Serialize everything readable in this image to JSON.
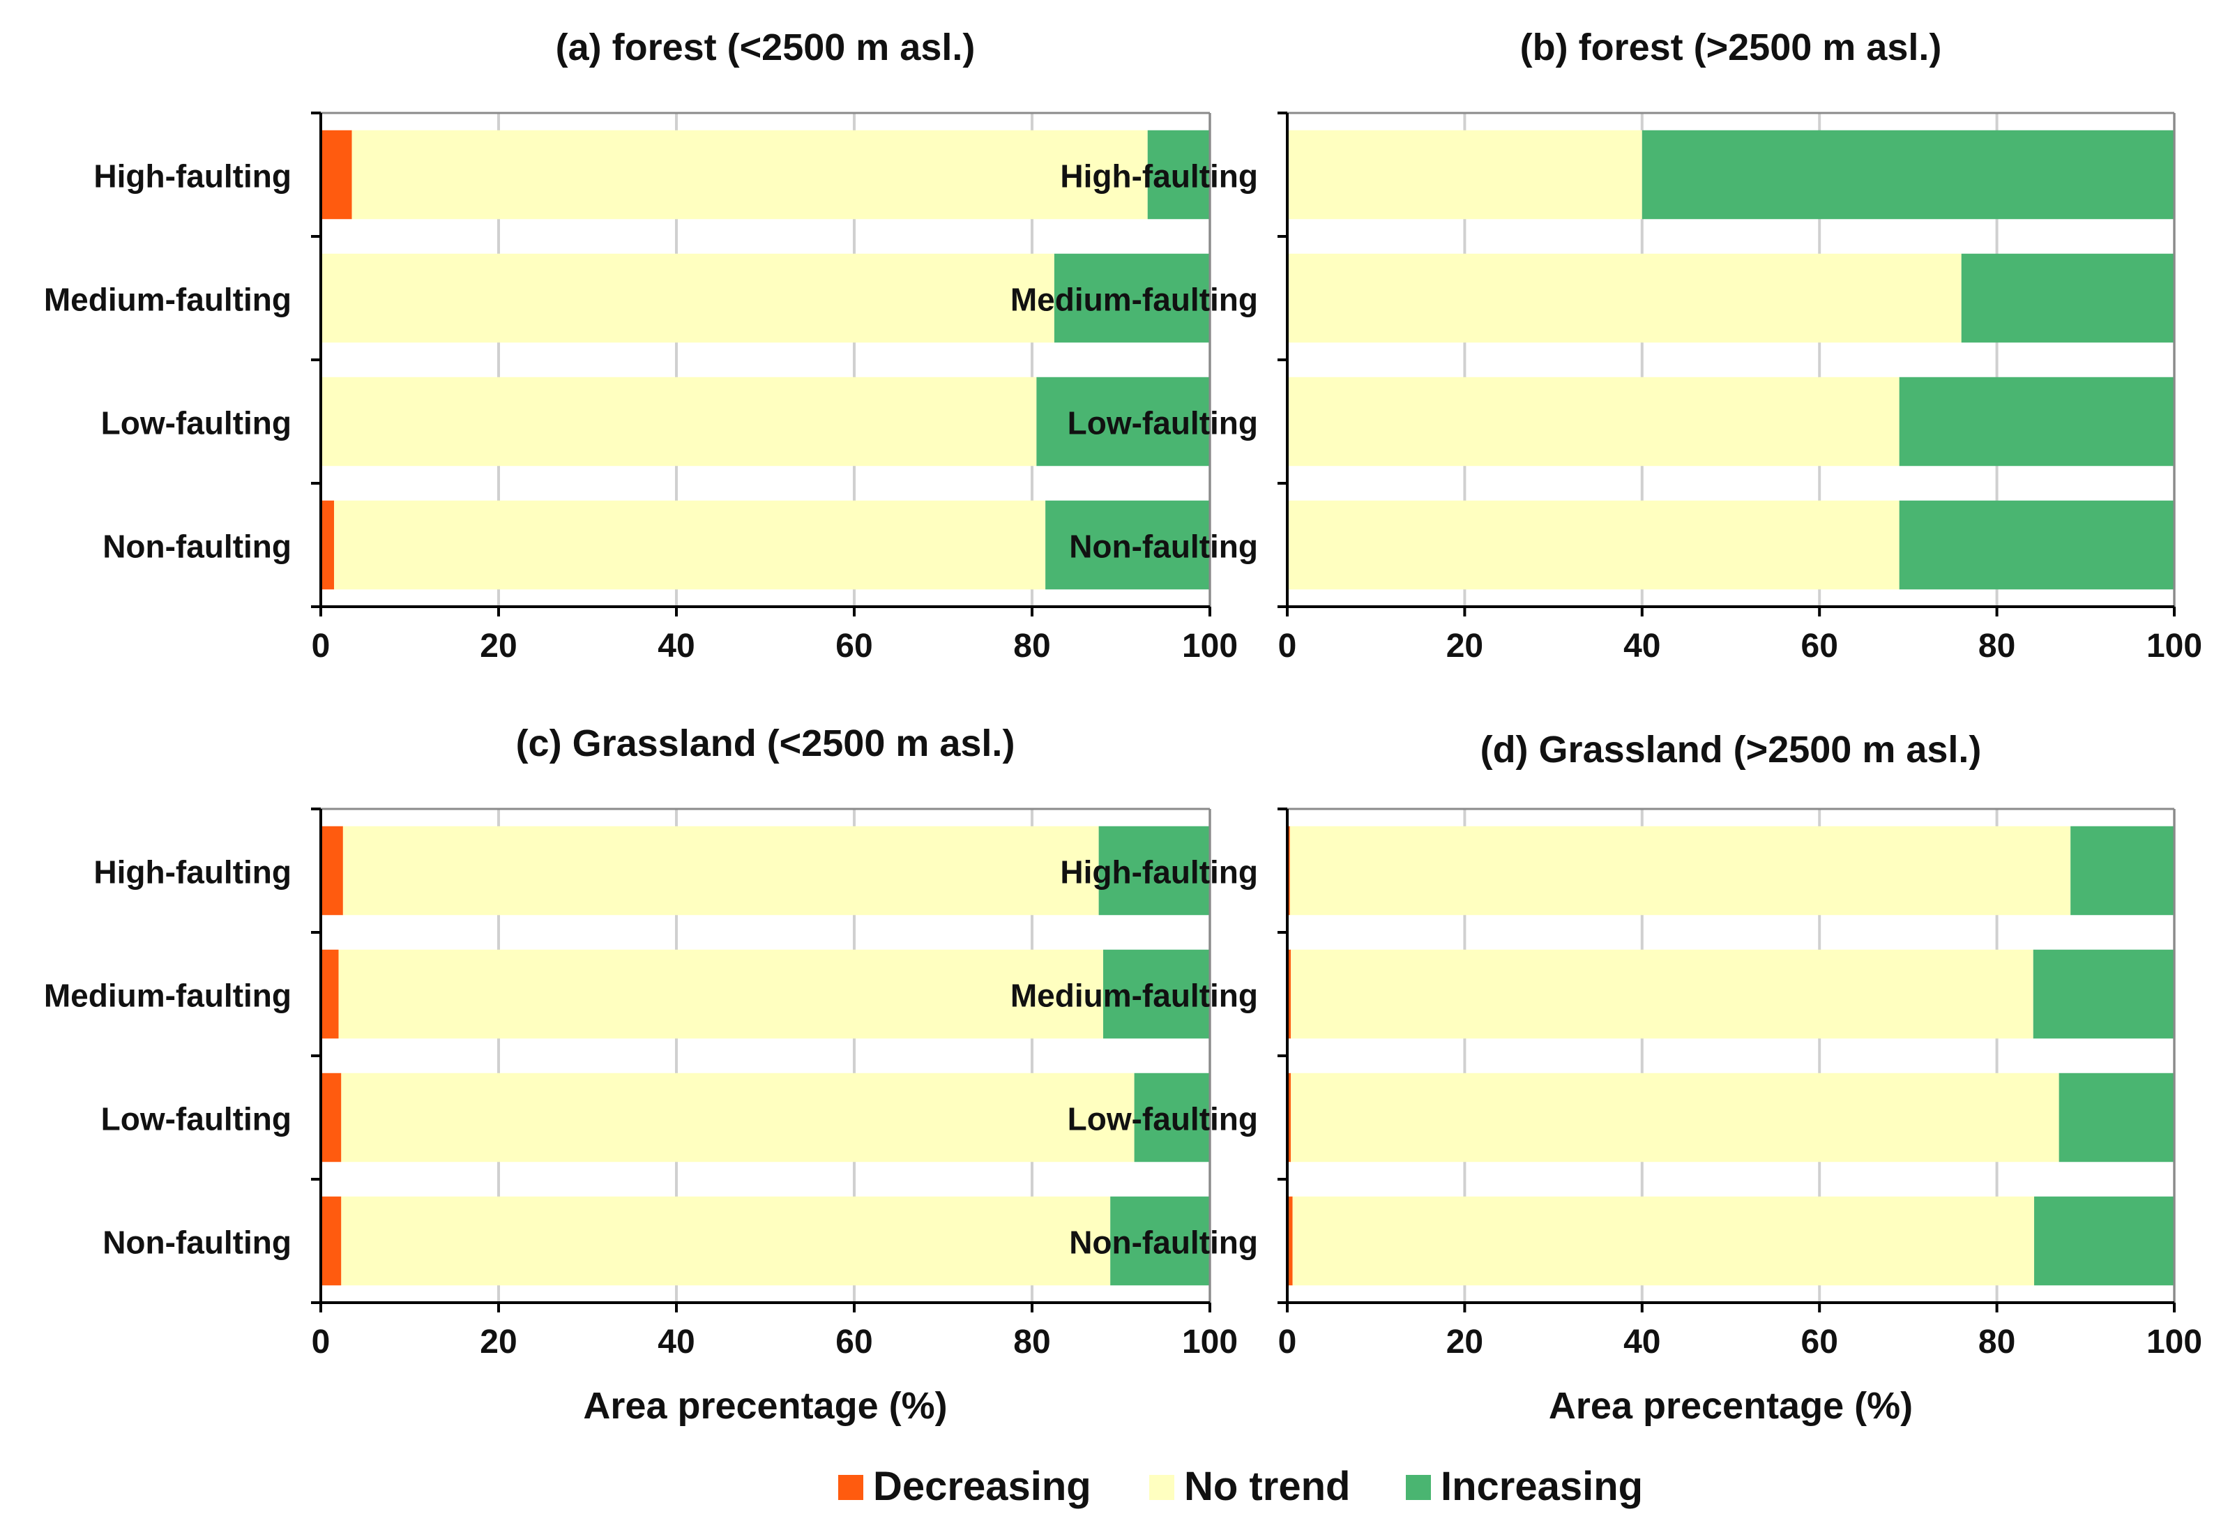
{
  "chart_data": [
    {
      "type": "bar",
      "stacked": true,
      "orientation": "horizontal",
      "title": "(a) forest (<2500 m asl.)",
      "categories": [
        "High-faulting",
        "Medium-faulting",
        "Low-faulting",
        "Non-faulting"
      ],
      "series": [
        {
          "name": "Decreasing",
          "values": [
            3.5,
            0,
            0,
            1.5
          ]
        },
        {
          "name": "No trend",
          "values": [
            89.5,
            82.5,
            80.5,
            80.0
          ]
        },
        {
          "name": "Increasing",
          "values": [
            7.0,
            17.5,
            19.5,
            18.5
          ]
        }
      ],
      "xlabel": "",
      "ylabel": "",
      "xlim": [
        0,
        100
      ],
      "xticks": [
        "0",
        "20",
        "40",
        "60",
        "80",
        "100"
      ],
      "grid": "vertical"
    },
    {
      "type": "bar",
      "stacked": true,
      "orientation": "horizontal",
      "title": "(b) forest (>2500 m asl.)",
      "categories": [
        "High-faulting",
        "Medium-faulting",
        "Low-faulting",
        "Non-faulting"
      ],
      "series": [
        {
          "name": "Decreasing",
          "values": [
            0,
            0,
            0,
            0
          ]
        },
        {
          "name": "No trend",
          "values": [
            40.0,
            76.0,
            69.0,
            69.0
          ]
        },
        {
          "name": "Increasing",
          "values": [
            60.0,
            24.0,
            31.0,
            31.0
          ]
        }
      ],
      "xlabel": "",
      "ylabel": "",
      "xlim": [
        0,
        100
      ],
      "xticks": [
        "0",
        "20",
        "40",
        "60",
        "80",
        "100"
      ],
      "grid": "vertical"
    },
    {
      "type": "bar",
      "stacked": true,
      "orientation": "horizontal",
      "title": "(c) Grassland (<2500 m asl.)",
      "categories": [
        "High-faulting",
        "Medium-faulting",
        "Low-faulting",
        "Non-faulting"
      ],
      "series": [
        {
          "name": "Decreasing",
          "values": [
            2.5,
            2.0,
            2.3,
            2.3
          ]
        },
        {
          "name": "No trend",
          "values": [
            85.0,
            86.0,
            89.2,
            86.5
          ]
        },
        {
          "name": "Increasing",
          "values": [
            12.5,
            12.0,
            8.5,
            11.2
          ]
        }
      ],
      "xlabel": "Area precentage (%)",
      "ylabel": "",
      "xlim": [
        0,
        100
      ],
      "xticks": [
        "0",
        "20",
        "40",
        "60",
        "80",
        "100"
      ],
      "grid": "vertical"
    },
    {
      "type": "bar",
      "stacked": true,
      "orientation": "horizontal",
      "title": "(d) Grassland (>2500 m asl.)",
      "categories": [
        "High-faulting",
        "Medium-faulting",
        "Low-faulting",
        "Non-faulting"
      ],
      "series": [
        {
          "name": "Decreasing",
          "values": [
            0.3,
            0.4,
            0.4,
            0.6
          ]
        },
        {
          "name": "No trend",
          "values": [
            88.0,
            83.7,
            86.6,
            83.6
          ]
        },
        {
          "name": "Increasing",
          "values": [
            11.7,
            15.9,
            13.0,
            15.8
          ]
        }
      ],
      "xlabel": "Area precentage (%)",
      "ylabel": "",
      "xlim": [
        0,
        100
      ],
      "xticks": [
        "0",
        "20",
        "40",
        "60",
        "80",
        "100"
      ],
      "grid": "vertical"
    }
  ],
  "legend": {
    "position": "bottom-center",
    "items": [
      {
        "label": "Decreasing",
        "color": "#FF5B0F"
      },
      {
        "label": "No trend",
        "color": "#FFFFC0"
      },
      {
        "label": "Increasing",
        "color": "#4AB571"
      }
    ]
  },
  "colors": {
    "Decreasing": "#FF5B0F",
    "No trend": "#FFFFC0",
    "Increasing": "#4AB571",
    "grid": "#D0D0D0",
    "axis": "#000000"
  }
}
